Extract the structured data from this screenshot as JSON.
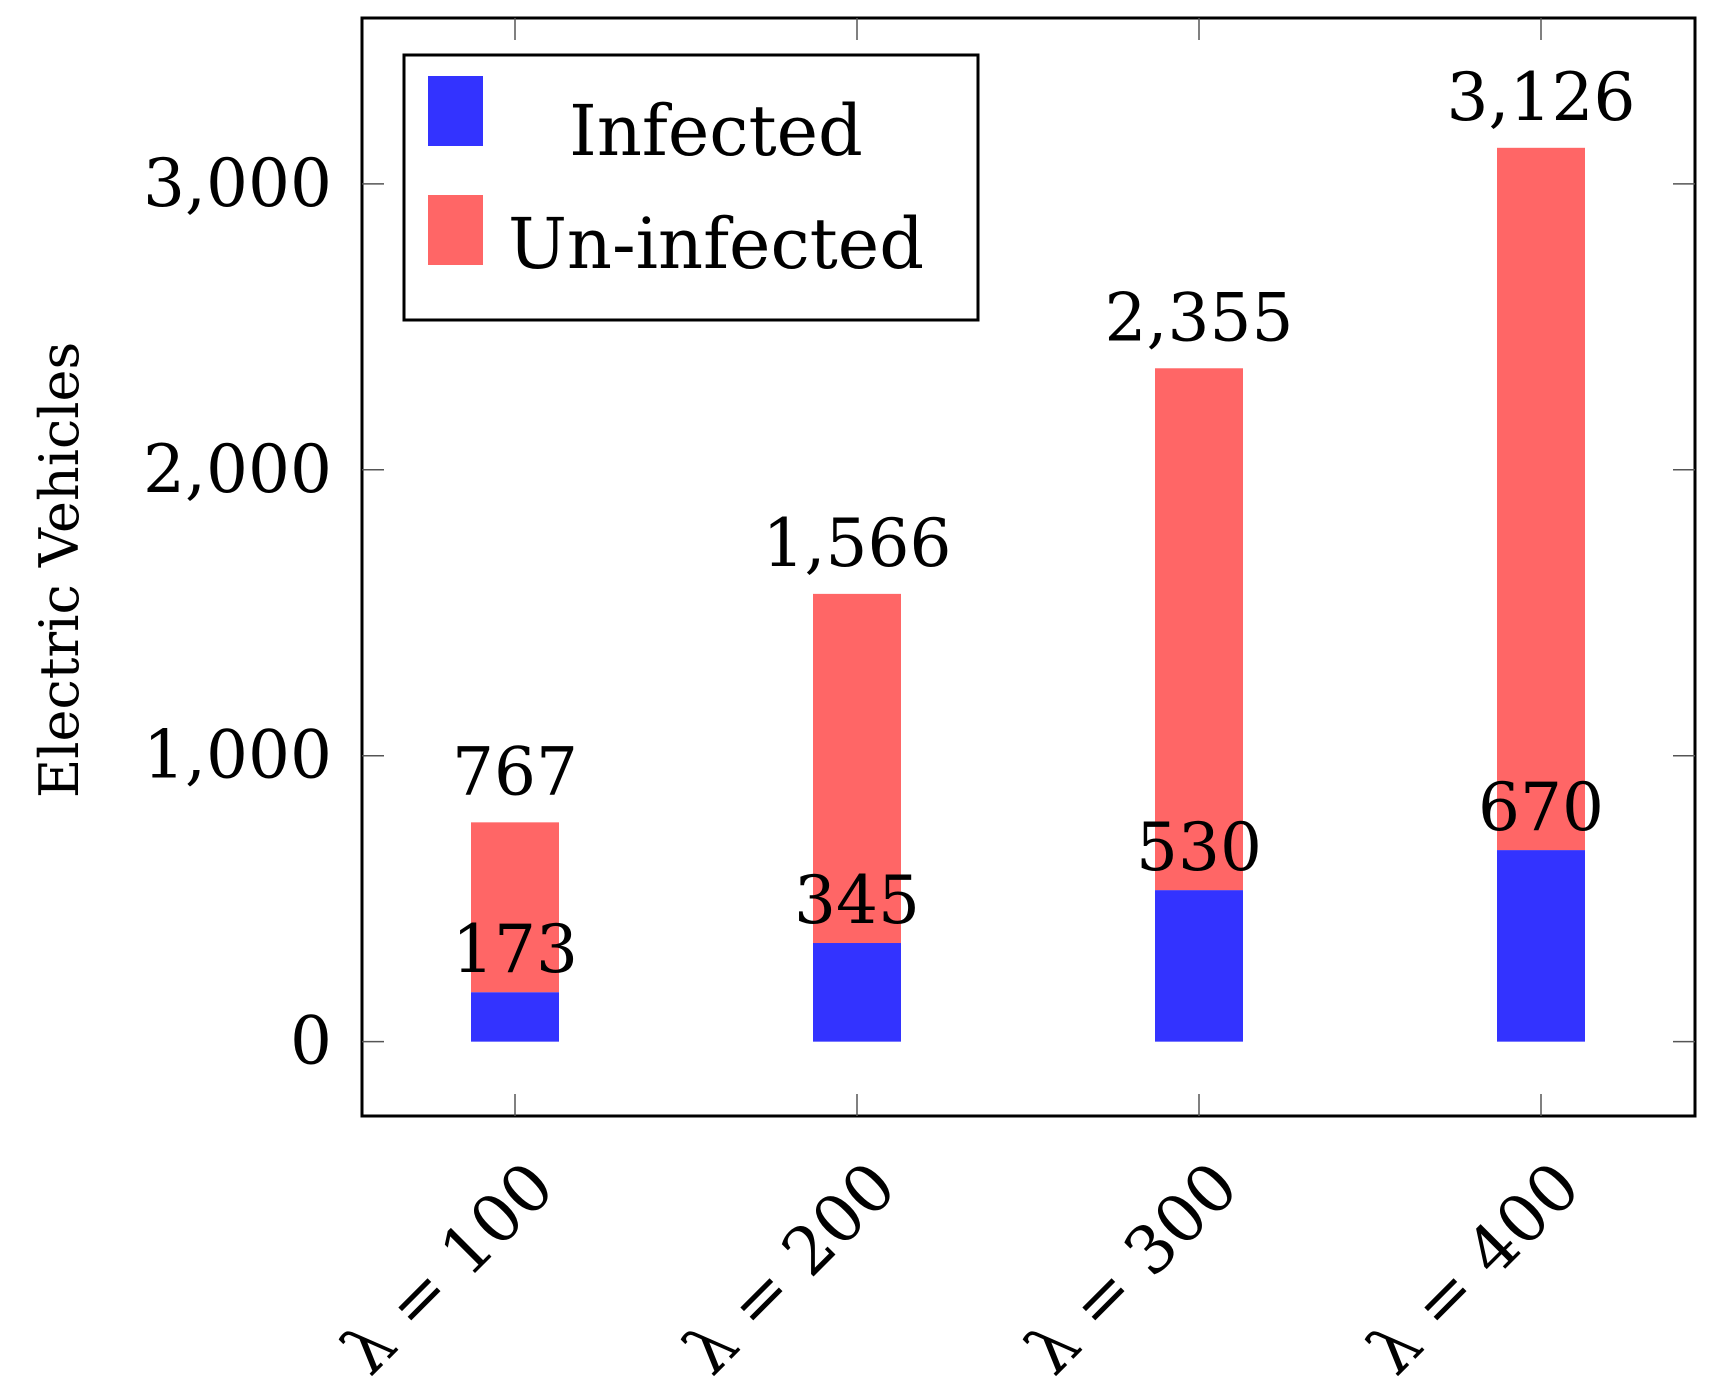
{
  "chart_data": {
    "type": "bar",
    "stacked": true,
    "title": "",
    "xlabel": "",
    "ylabel": "Electric Vehicles",
    "categories": [
      "λ = 100",
      "λ = 200",
      "λ = 300",
      "λ = 400"
    ],
    "series": [
      {
        "name": "Infected",
        "color": "#3333ff",
        "values": [
          173,
          345,
          530,
          670
        ]
      },
      {
        "name": "Un-infected",
        "color": "#ff6666",
        "values": [
          594,
          1221,
          1825,
          2456
        ]
      }
    ],
    "totals": [
      767,
      1566,
      2355,
      3126
    ],
    "data_labels": {
      "infected": [
        "173",
        "345",
        "530",
        "670"
      ],
      "totals": [
        "767",
        "1,566",
        "2,355",
        "3,126"
      ]
    },
    "ylim": [
      -260,
      3580
    ],
    "yticks": [
      0,
      1000,
      2000,
      3000
    ],
    "ytick_labels": [
      "0",
      "1,000",
      "2,000",
      "3,000"
    ],
    "legend": {
      "position": "top-left",
      "entries": [
        "Infected",
        "Un-infected"
      ]
    },
    "grid": false
  }
}
